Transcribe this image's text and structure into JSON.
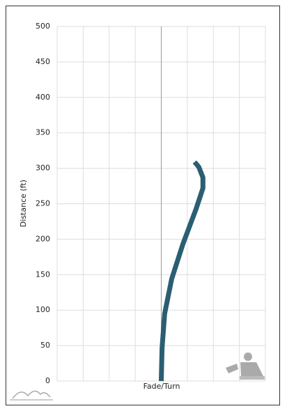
{
  "chart_data": {
    "type": "line",
    "xlabel": "Fade/Turn",
    "ylabel": "Distance (ft)",
    "series": [
      {
        "color": "#2b5e72",
        "x": [
          0,
          0.03,
          0.13,
          0.4,
          0.83,
          1.34,
          1.6,
          1.6,
          1.44,
          1.28
        ],
        "values": [
          0,
          46,
          95,
          144,
          193,
          243,
          272,
          287,
          302,
          309
        ]
      }
    ],
    "xlim": [
      -4,
      4
    ],
    "xticks": [
      -4,
      -3,
      -2,
      -1,
      0,
      1,
      2,
      3,
      4
    ],
    "ylim": [
      0,
      500
    ],
    "yticks": [
      0,
      50,
      100,
      150,
      200,
      250,
      300,
      350,
      400,
      450,
      500
    ],
    "grid": true
  }
}
